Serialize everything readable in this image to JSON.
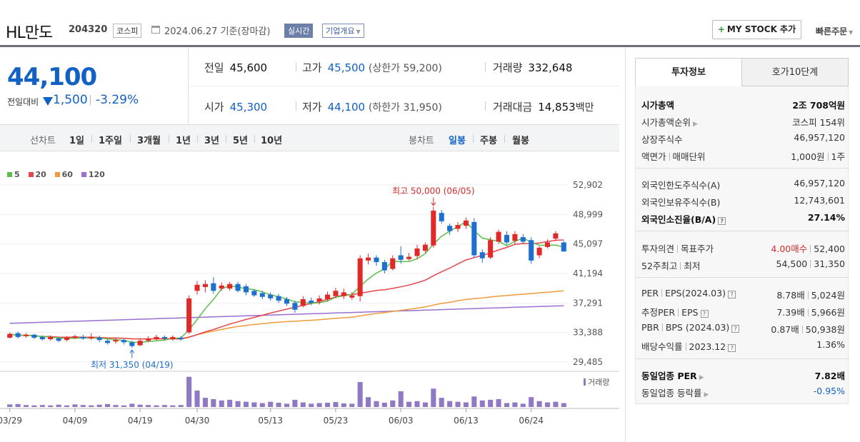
{
  "header": {
    "name": "HL만도",
    "code": "204320",
    "market": "코스피",
    "date_text": "2024.06.27 기준(장마감)",
    "realtime_label": "실시간",
    "company_label": "기업개요",
    "mystock_label": "MY STOCK 추가",
    "quick_order_label": "빠른주문"
  },
  "price": {
    "current": "44,100",
    "prev_label": "전일대비",
    "change": "1,500",
    "rate": "-3.29%"
  },
  "summary": {
    "prev_close_label": "전일",
    "prev_close": "45,600",
    "high_label": "고가",
    "high": "45,500",
    "upper_limit": "(상한가 59,200)",
    "volume_label": "거래량",
    "volume": "332,648",
    "open_label": "시가",
    "open": "45,300",
    "low_label": "저가",
    "low": "44,100",
    "lower_limit": "(하한가 31,950)",
    "amount_label": "거래대금",
    "amount": "14,853",
    "amount_unit": "백만"
  },
  "periods": {
    "line_label": "선차트",
    "line_options": [
      "1일",
      "1주일",
      "3개월",
      "1년",
      "3년",
      "5년",
      "10년"
    ],
    "candle_label": "봉차트",
    "candle_options": [
      "일봉",
      "주봉",
      "월봉"
    ]
  },
  "chart_data": {
    "type": "candlestick",
    "legend": [
      {
        "name": "5",
        "color": "#5bbf4a"
      },
      {
        "name": "20",
        "color": "#e8454b"
      },
      {
        "name": "60",
        "color": "#f19a3d"
      },
      {
        "name": "120",
        "color": "#9b6fd0"
      }
    ],
    "yticks": [
      "52,902",
      "48,999",
      "45,097",
      "41,194",
      "37,291",
      "33,388",
      "29,485"
    ],
    "ylim": [
      29485,
      52902
    ],
    "xticks": [
      "03/29",
      "04/09",
      "04/19",
      "04/30",
      "05/13",
      "05/23",
      "06/03",
      "06/13",
      "06/24"
    ],
    "high_annotation": "최고 50,000 (06/05)",
    "low_annotation": "최저 31,350 (04/19)",
    "volume_label": "거래량",
    "candles": [
      {
        "o": 32700,
        "c": 33200,
        "h": 33400,
        "l": 32600
      },
      {
        "o": 33300,
        "c": 32800,
        "h": 33500,
        "l": 32600
      },
      {
        "o": 32900,
        "c": 33100,
        "h": 33300,
        "l": 32700
      },
      {
        "o": 33100,
        "c": 32700,
        "h": 33200,
        "l": 32500
      },
      {
        "o": 32800,
        "c": 32500,
        "h": 33000,
        "l": 32300
      },
      {
        "o": 32500,
        "c": 32800,
        "h": 33000,
        "l": 32300
      },
      {
        "o": 32600,
        "c": 32300,
        "h": 32800,
        "l": 32100
      },
      {
        "o": 32400,
        "c": 32700,
        "h": 32900,
        "l": 32200
      },
      {
        "o": 32700,
        "c": 32900,
        "h": 33100,
        "l": 32500
      },
      {
        "o": 32800,
        "c": 32600,
        "h": 33100,
        "l": 32400
      },
      {
        "o": 32600,
        "c": 32800,
        "h": 33300,
        "l": 32400
      },
      {
        "o": 32700,
        "c": 32400,
        "h": 33000,
        "l": 32100
      },
      {
        "o": 32300,
        "c": 32000,
        "h": 32500,
        "l": 31800
      },
      {
        "o": 32200,
        "c": 32400,
        "h": 32700,
        "l": 31900
      },
      {
        "o": 32400,
        "c": 32100,
        "h": 32600,
        "l": 31800
      },
      {
        "o": 32100,
        "c": 31600,
        "h": 32300,
        "l": 31350
      },
      {
        "o": 31700,
        "c": 32300,
        "h": 32500,
        "l": 31600
      },
      {
        "o": 32300,
        "c": 32600,
        "h": 32900,
        "l": 32100
      },
      {
        "o": 32500,
        "c": 32800,
        "h": 33100,
        "l": 32300
      },
      {
        "o": 32800,
        "c": 32600,
        "h": 33000,
        "l": 32400
      },
      {
        "o": 32500,
        "c": 32800,
        "h": 33000,
        "l": 32300
      },
      {
        "o": 32700,
        "c": 32500,
        "h": 32900,
        "l": 32300
      },
      {
        "o": 33400,
        "c": 37900,
        "h": 38300,
        "l": 33200
      },
      {
        "o": 38900,
        "c": 39700,
        "h": 40200,
        "l": 38400
      },
      {
        "o": 39400,
        "c": 39800,
        "h": 40300,
        "l": 38700
      },
      {
        "o": 39900,
        "c": 38900,
        "h": 40700,
        "l": 38500
      },
      {
        "o": 39200,
        "c": 39600,
        "h": 40000,
        "l": 38900
      },
      {
        "o": 39200,
        "c": 39800,
        "h": 40100,
        "l": 38900
      },
      {
        "o": 39800,
        "c": 38900,
        "h": 40100,
        "l": 38700
      },
      {
        "o": 39500,
        "c": 38700,
        "h": 39800,
        "l": 38300
      },
      {
        "o": 38900,
        "c": 38300,
        "h": 39100,
        "l": 38100
      },
      {
        "o": 38600,
        "c": 38100,
        "h": 38900,
        "l": 37800
      },
      {
        "o": 38400,
        "c": 37900,
        "h": 38700,
        "l": 37600
      },
      {
        "o": 38200,
        "c": 37600,
        "h": 38500,
        "l": 37300
      },
      {
        "o": 37800,
        "c": 37200,
        "h": 38100,
        "l": 36900
      },
      {
        "o": 37300,
        "c": 36400,
        "h": 37600,
        "l": 36000
      },
      {
        "o": 36900,
        "c": 37800,
        "h": 38200,
        "l": 36700
      },
      {
        "o": 37600,
        "c": 37300,
        "h": 38000,
        "l": 37000
      },
      {
        "o": 37500,
        "c": 37900,
        "h": 38300,
        "l": 37100
      },
      {
        "o": 37800,
        "c": 38400,
        "h": 38800,
        "l": 37500
      },
      {
        "o": 38200,
        "c": 38900,
        "h": 39300,
        "l": 37900
      },
      {
        "o": 38200,
        "c": 38700,
        "h": 39200,
        "l": 37800
      },
      {
        "o": 38000,
        "c": 38300,
        "h": 38700,
        "l": 37700
      },
      {
        "o": 38200,
        "c": 43200,
        "h": 43600,
        "l": 37500
      },
      {
        "o": 42900,
        "c": 43300,
        "h": 43800,
        "l": 42400
      },
      {
        "o": 43300,
        "c": 42700,
        "h": 43600,
        "l": 42200
      },
      {
        "o": 42700,
        "c": 41600,
        "h": 43000,
        "l": 41200
      },
      {
        "o": 41800,
        "c": 43200,
        "h": 43600,
        "l": 41600
      },
      {
        "o": 43600,
        "c": 43000,
        "h": 44800,
        "l": 42500
      },
      {
        "o": 43100,
        "c": 43400,
        "h": 43900,
        "l": 42900
      },
      {
        "o": 43500,
        "c": 44500,
        "h": 45000,
        "l": 43100
      },
      {
        "o": 44200,
        "c": 45000,
        "h": 45300,
        "l": 43900
      },
      {
        "o": 44900,
        "c": 49500,
        "h": 50000,
        "l": 44600
      },
      {
        "o": 49200,
        "c": 48100,
        "h": 49600,
        "l": 47800
      },
      {
        "o": 47500,
        "c": 46800,
        "h": 47800,
        "l": 46300
      },
      {
        "o": 47100,
        "c": 47600,
        "h": 48000,
        "l": 46700
      },
      {
        "o": 47500,
        "c": 48200,
        "h": 48600,
        "l": 47100
      },
      {
        "o": 48000,
        "c": 43600,
        "h": 48500,
        "l": 43200
      },
      {
        "o": 44000,
        "c": 43200,
        "h": 44400,
        "l": 42600
      },
      {
        "o": 43300,
        "c": 45600,
        "h": 46000,
        "l": 43100
      },
      {
        "o": 45400,
        "c": 46700,
        "h": 47000,
        "l": 45100
      },
      {
        "o": 46300,
        "c": 45300,
        "h": 46800,
        "l": 45000
      },
      {
        "o": 45500,
        "c": 46400,
        "h": 46800,
        "l": 45100
      },
      {
        "o": 46000,
        "c": 45400,
        "h": 46400,
        "l": 45100
      },
      {
        "o": 45600,
        "c": 42900,
        "h": 46000,
        "l": 42500
      },
      {
        "o": 43600,
        "c": 44600,
        "h": 44800,
        "l": 43200
      },
      {
        "o": 44700,
        "c": 45300,
        "h": 45700,
        "l": 44500
      },
      {
        "o": 45800,
        "c": 46500,
        "h": 46800,
        "l": 45500
      },
      {
        "o": 45300,
        "c": 44100,
        "h": 45500,
        "l": 44100
      }
    ],
    "volumes": [
      0.08,
      0.09,
      0.06,
      0.05,
      0.06,
      0.05,
      0.07,
      0.05,
      0.08,
      0.06,
      0.05,
      0.07,
      0.09,
      0.06,
      0.05,
      0.1,
      0.07,
      0.06,
      0.05,
      0.06,
      0.05,
      0.06,
      0.92,
      0.5,
      0.28,
      0.24,
      0.2,
      0.22,
      0.18,
      0.16,
      0.14,
      0.12,
      0.16,
      0.13,
      0.1,
      0.22,
      0.14,
      0.1,
      0.12,
      0.13,
      0.15,
      0.11,
      0.1,
      0.76,
      0.3,
      0.18,
      0.13,
      0.2,
      0.48,
      0.16,
      0.18,
      0.14,
      0.56,
      0.28,
      0.18,
      0.16,
      0.14,
      0.32,
      0.2,
      0.22,
      0.24,
      0.12,
      0.14,
      0.1,
      0.3,
      0.18,
      0.14,
      0.16,
      0.12
    ]
  },
  "right": {
    "tab_active": "투자정보",
    "tab_inactive": "호가10단계",
    "mcap_label": "시가총액",
    "mcap": "2조 708억원",
    "mcap_rank_label": "시가총액순위",
    "mcap_rank": "코스피 154위",
    "shares_label": "상장주식수",
    "shares": "46,957,120",
    "par_label": "액면가",
    "unit_label": "매매단위",
    "par": "1,000원",
    "unit": "1주",
    "foreign_limit_label": "외국인한도주식수(A)",
    "foreign_limit": "46,957,120",
    "foreign_hold_label": "외국인보유주식수(B)",
    "foreign_hold": "12,743,601",
    "foreign_rate_label": "외국인소진율(B/A)",
    "foreign_rate": "27.14%",
    "opinion_label": "투자의견",
    "target_label": "목표주가",
    "opinion": "4.00매수",
    "target": "52,400",
    "wk52_label": "52주최고",
    "wk52_low_label": "최저",
    "wk52_high": "54,500",
    "wk52_low": "31,350",
    "per_label": "PER",
    "eps_label": "EPS(2024.03)",
    "per": "8.78배",
    "eps": "5,024원",
    "est_per_label": "추정PER",
    "est_eps_label": "EPS",
    "est_per": "7.39배",
    "est_eps": "5,966원",
    "pbr_label": "PBR",
    "bps_label": "BPS (2024.03)",
    "pbr": "0.87배",
    "bps": "50,938원",
    "div_label": "배당수익률",
    "div_date": "2023.12",
    "div": "1.36%",
    "ind_per_label": "동일업종 PER",
    "ind_per": "7.82배",
    "ind_rate_label": "동일업종 등락률",
    "ind_rate": "-0.95%"
  }
}
